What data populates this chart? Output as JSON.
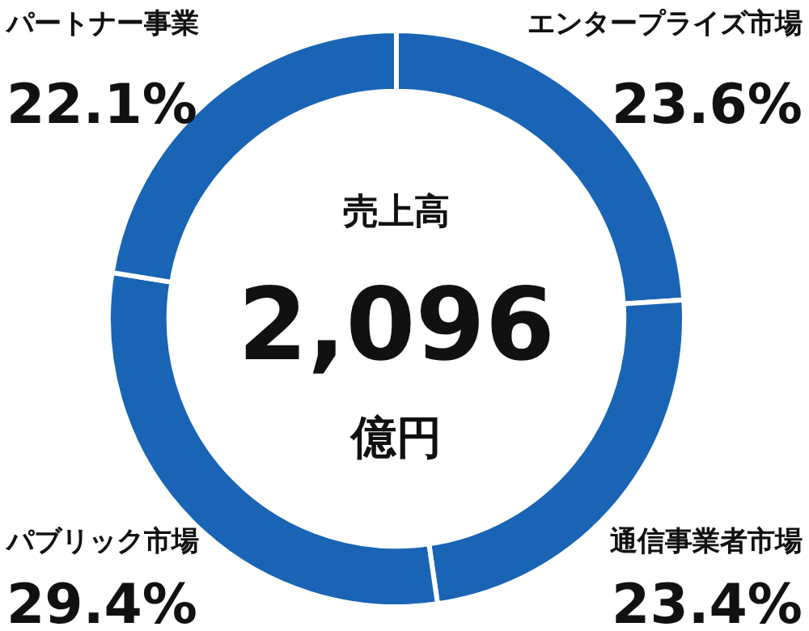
{
  "chart_data": {
    "type": "donut",
    "title": "売上高",
    "annotations": [
      "2,096",
      "億円"
    ],
    "categories": [
      "エンタープライズ市場",
      "通信事業者市場",
      "パブリック市場",
      "パートナー事業"
    ],
    "values": [
      23.6,
      23.4,
      29.4,
      22.1
    ],
    "value_labels": [
      "23.6%",
      "23.4%",
      "29.4%",
      "22.1%"
    ],
    "colors": [
      "#1a64b6",
      "#1a64b6",
      "#1a64b6",
      "#1a64b6"
    ]
  }
}
